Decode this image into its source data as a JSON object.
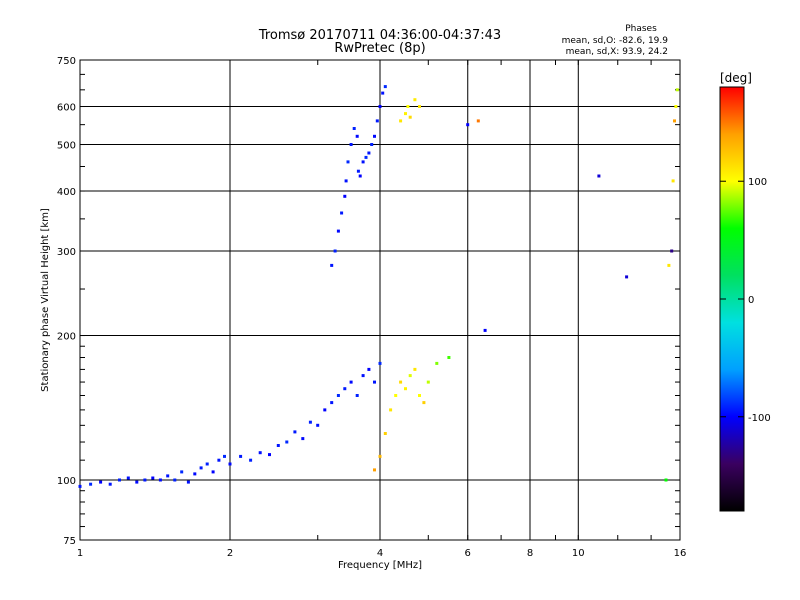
{
  "chart_data": {
    "type": "scatter",
    "title": "Tromsø 20170711 04:36:00-04:37:43",
    "subtitle": "RwPretec (8p)",
    "xlabel": "Frequency [MHz]",
    "ylabel": "Stationary phase Virtual Height [km]",
    "x_scale": "log",
    "y_scale": "log",
    "xlim": [
      1,
      16
    ],
    "ylim": [
      75,
      750
    ],
    "grid": true,
    "x_ticks": [
      1,
      2,
      4,
      6,
      8,
      10,
      16
    ],
    "x_tick_labels": [
      "1",
      "2",
      "4",
      "6",
      "8",
      "10",
      "16"
    ],
    "y_ticks": [
      75,
      100,
      200,
      300,
      400,
      500,
      600,
      750
    ],
    "y_tick_labels": [
      "75",
      "100",
      "200",
      "300",
      "400",
      "500",
      "600",
      "750"
    ],
    "phases_title": "Phases",
    "phases_lines": [
      "mean, sd,O: -82.6, 19.9",
      "mean, sd,X: 93.9, 24.2"
    ],
    "colorbar": {
      "label": "[deg]",
      "range": [
        -180,
        180
      ],
      "ticks": [
        100,
        0,
        -100
      ],
      "tick_labels": [
        "100",
        "0",
        "-100"
      ],
      "stops": [
        "#000000",
        "#3a0060",
        "#0000ff",
        "#00a0ff",
        "#00e0e0",
        "#00e060",
        "#00ff00",
        "#ffff00",
        "#ffa000",
        "#ff0000"
      ]
    },
    "series": [
      {
        "x": [
          1.0,
          1.05,
          1.1,
          1.15,
          1.2,
          1.25,
          1.3,
          1.35,
          1.4,
          1.45,
          1.5,
          1.55,
          1.6,
          1.65,
          1.7,
          1.75,
          1.8,
          1.85,
          1.9,
          1.95,
          2.0,
          2.1,
          2.2,
          2.3,
          2.4,
          2.5,
          2.6,
          2.7,
          2.8,
          2.9,
          3.0,
          3.1,
          3.2,
          3.3,
          3.4,
          3.5,
          3.6,
          3.7,
          3.8,
          3.9,
          4.0
        ],
        "y": [
          97,
          98,
          99,
          98,
          100,
          101,
          99,
          100,
          101,
          100,
          102,
          100,
          104,
          99,
          103,
          106,
          108,
          104,
          110,
          112,
          108,
          112,
          110,
          114,
          113,
          118,
          120,
          126,
          122,
          132,
          130,
          140,
          145,
          150,
          155,
          160,
          150,
          165,
          170,
          160,
          175
        ],
        "phase": [
          -95,
          -90,
          -100,
          -95,
          -92,
          -96,
          -98,
          -94,
          -100,
          -97,
          -95,
          -92,
          -90,
          -96,
          -98,
          -94,
          -92,
          -100,
          -95,
          -90,
          -98,
          -94,
          -92,
          -96,
          -100,
          -95,
          -90,
          -94,
          -98,
          -92,
          -96,
          -100,
          -95,
          -90,
          -94,
          -98,
          -92,
          -96,
          -100,
          -95,
          -90
        ]
      },
      {
        "x": [
          3.2,
          3.25,
          3.3,
          3.35,
          3.4,
          3.42,
          3.45,
          3.5,
          3.55,
          3.6,
          3.62,
          3.65,
          3.7,
          3.75,
          3.8,
          3.85,
          3.9,
          3.95,
          4.0,
          4.05,
          4.1
        ],
        "y": [
          280,
          300,
          330,
          360,
          390,
          420,
          460,
          500,
          540,
          520,
          440,
          430,
          460,
          470,
          480,
          500,
          520,
          560,
          600,
          640,
          660
        ],
        "phase": [
          -95,
          -92,
          -98,
          -94,
          -100,
          -96,
          -90,
          -95,
          -92,
          -98,
          -94,
          -100,
          -96,
          -90,
          -95,
          -92,
          -98,
          -94,
          -100,
          -96,
          -90
        ]
      },
      {
        "x": [
          4.4,
          4.5,
          4.55,
          4.6,
          4.7,
          4.8
        ],
        "y": [
          560,
          580,
          600,
          570,
          620,
          600
        ],
        "phase": [
          110,
          105,
          100,
          115,
          108,
          112
        ]
      },
      {
        "x": [
          3.9,
          4.0,
          4.1,
          4.2,
          4.3,
          4.4,
          4.5,
          4.6,
          4.7,
          4.8,
          4.9,
          5.0,
          5.2,
          5.5
        ],
        "y": [
          105,
          112,
          125,
          140,
          150,
          160,
          155,
          165,
          170,
          150,
          145,
          160,
          175,
          180
        ],
        "phase": [
          140,
          130,
          120,
          110,
          100,
          115,
          105,
          95,
          110,
          100,
          120,
          90,
          80,
          70
        ]
      },
      {
        "x": [
          6.0,
          6.3,
          6.5,
          11.0,
          12.5,
          15.0,
          15.2,
          15.4,
          15.5,
          15.6,
          15.7,
          15.8
        ],
        "y": [
          550,
          560,
          205,
          430,
          265,
          100,
          280,
          300,
          420,
          560,
          600,
          650
        ],
        "phase": [
          -100,
          150,
          -100,
          -110,
          -110,
          60,
          110,
          -130,
          110,
          140,
          100,
          90
        ]
      }
    ]
  }
}
